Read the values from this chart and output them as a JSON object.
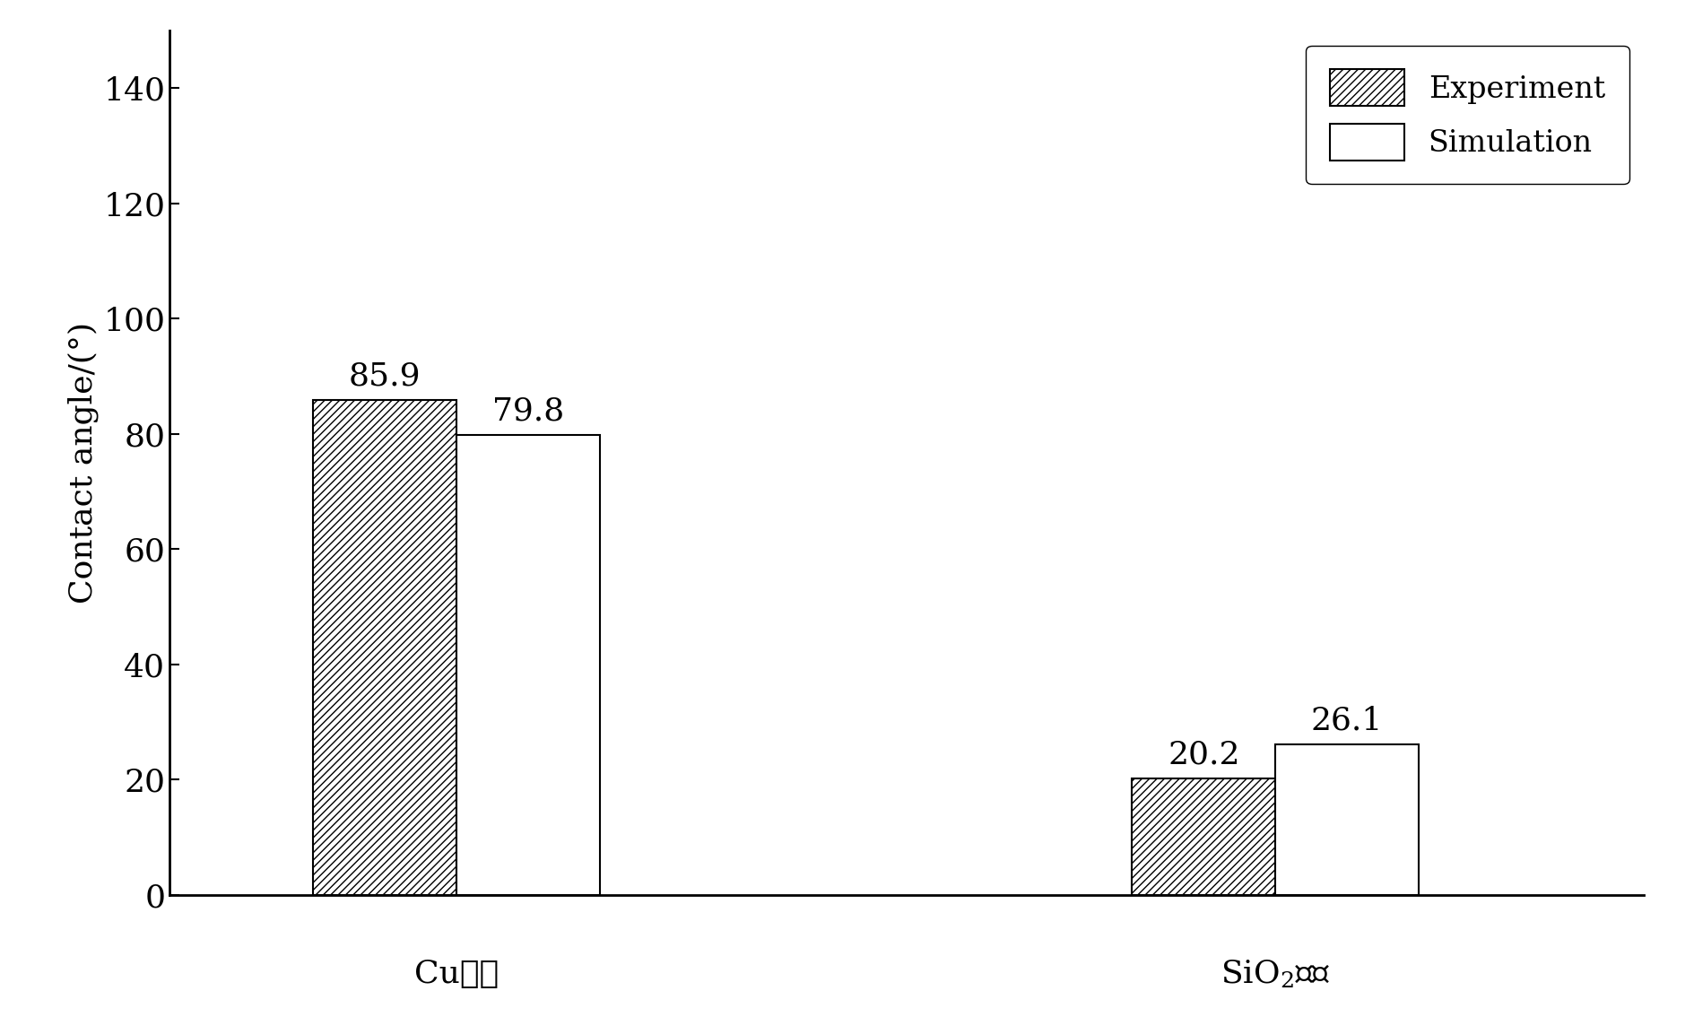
{
  "groups": [
    "Cu基底",
    "SiO₂基底"
  ],
  "experiment_values": [
    85.9,
    20.2
  ],
  "simulation_values": [
    79.8,
    26.1
  ],
  "ylabel": "Contact angle/(°)",
  "ylim": [
    0,
    150
  ],
  "yticks": [
    0,
    20,
    40,
    60,
    80,
    100,
    120,
    140
  ],
  "legend_labels": [
    "Experiment",
    "Simulation"
  ],
  "bar_width": 0.35,
  "group_positions": [
    1.0,
    3.0
  ],
  "hatch_experiment": "////",
  "hatch_simulation": "====",
  "bar_edgecolor": "#000000",
  "bar_facecolor": "#ffffff",
  "label_fontsize": 26,
  "tick_fontsize": 26,
  "annotation_fontsize": 26,
  "legend_fontsize": 24,
  "background_color": "#ffffff",
  "figure_width": 18.9,
  "figure_height": 11.34,
  "dpi": 100,
  "xlim": [
    0.3,
    3.9
  ]
}
